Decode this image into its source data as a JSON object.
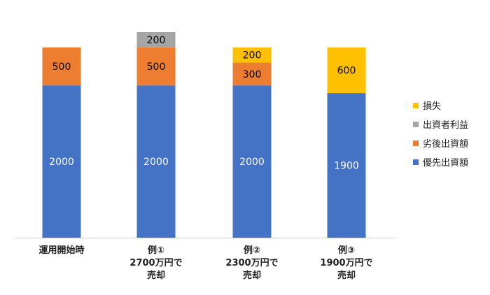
{
  "chart_data": {
    "type": "bar",
    "stacked": true,
    "title": "",
    "xlabel": "",
    "ylabel": "",
    "ylim": [
      0,
      2700
    ],
    "grid": false,
    "legend_position": "right",
    "categories": [
      [
        "運用開始時"
      ],
      [
        "例①",
        "2700万円で",
        "売却"
      ],
      [
        "例②",
        "2300万円で",
        "売却"
      ],
      [
        "例③",
        "1900万円で",
        "売却"
      ]
    ],
    "series": [
      {
        "name": "優先出資額",
        "color": "#4472C4",
        "label_color": "#ffffff",
        "values": [
          2000,
          2000,
          2000,
          1900
        ]
      },
      {
        "name": "劣後出資額",
        "color": "#ED7D31",
        "label_color": "#000000",
        "values": [
          500,
          500,
          300,
          0
        ]
      },
      {
        "name": "出資者利益",
        "color": "#A5A5A5",
        "label_color": "#000000",
        "values": [
          0,
          200,
          0,
          0
        ]
      },
      {
        "name": "損失",
        "color": "#FFC000",
        "label_color": "#000000",
        "values": [
          0,
          0,
          200,
          600
        ]
      }
    ],
    "legend_order": [
      "損失",
      "出資者利益",
      "劣後出資額",
      "優先出資額"
    ]
  }
}
